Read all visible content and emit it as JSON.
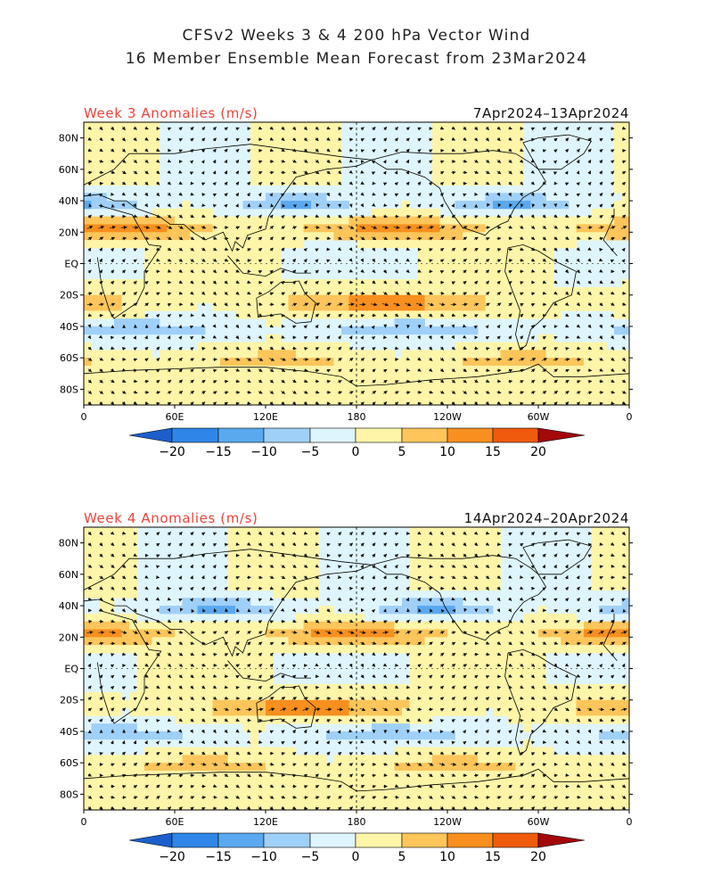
{
  "title": {
    "line1": "CFSv2 Weeks 3 & 4 200 hPa Vector Wind",
    "line2": "16 Member Ensemble Mean Forecast from 23Mar2024"
  },
  "panels": [
    {
      "label": "Week 3 Anomalies (m/s)",
      "date_range": "7Apr2024–13Apr2024"
    },
    {
      "label": "Week 4 Anomalies (m/s)",
      "date_range": "14Apr2024–20Apr2024"
    }
  ],
  "axes": {
    "lat_ticks": [
      "80N",
      "60N",
      "40N",
      "20N",
      "EQ",
      "20S",
      "40S",
      "60S",
      "80S"
    ],
    "lat_values": [
      80,
      60,
      40,
      20,
      0,
      -20,
      -40,
      -60,
      -80
    ],
    "lon_ticks": [
      "0",
      "60E",
      "120E",
      "180",
      "120W",
      "60W",
      "0"
    ],
    "lon_values": [
      0,
      60,
      120,
      180,
      240,
      300,
      360
    ],
    "lon_range": [
      0,
      360
    ],
    "lat_range": [
      -90,
      90
    ]
  },
  "colorbar": {
    "ticks": [
      "−20",
      "−15",
      "−10",
      "−5",
      "0",
      "5",
      "10",
      "15",
      "20"
    ],
    "bins": [
      {
        "color": "#1c5fcc"
      },
      {
        "color": "#2f86e8"
      },
      {
        "color": "#5aa9f0"
      },
      {
        "color": "#9fd0f8"
      },
      {
        "color": "#dff5fd"
      },
      {
        "color": "#fff5a8"
      },
      {
        "color": "#fdc55a"
      },
      {
        "color": "#f88f1e"
      },
      {
        "color": "#ef5a0c"
      },
      {
        "color": "#d3200b"
      },
      {
        "color": "#a3080a"
      }
    ]
  },
  "colors": {
    "land": "#000000",
    "background": "#dff5fd"
  }
}
